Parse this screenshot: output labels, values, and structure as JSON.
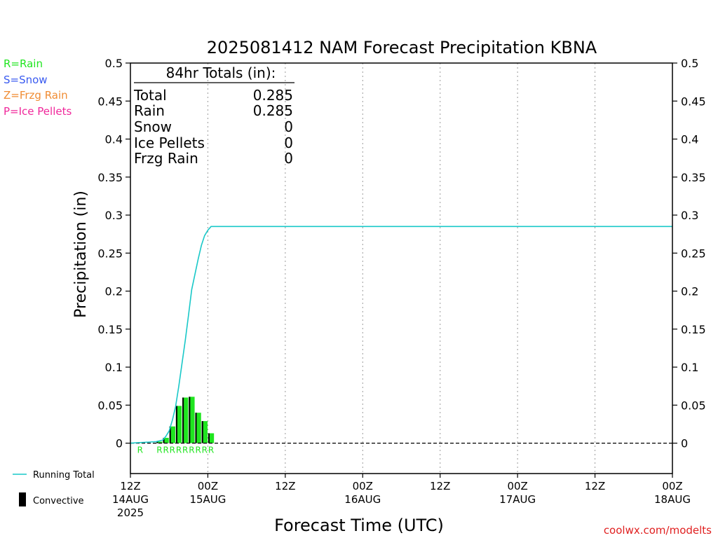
{
  "chart_data": {
    "type": "bar",
    "title": "2025081412 NAM Forecast Precipitation KBNA",
    "xlabel": "Forecast Time (UTC)",
    "ylabel": "Precipitation (in)",
    "ylim": [
      -0.04,
      0.5
    ],
    "xlim_hours": [
      0,
      84
    ],
    "y_ticks": [
      "0.5",
      "0.45",
      "0.4",
      "0.35",
      "0.3",
      "0.25",
      "0.2",
      "0.15",
      "0.1",
      "0.05",
      "0"
    ],
    "x_ticks": [
      {
        "hour": 0,
        "line1": "12Z",
        "line2": "14AUG",
        "line3": "2025"
      },
      {
        "hour": 12,
        "line1": "00Z",
        "line2": "15AUG",
        "line3": ""
      },
      {
        "hour": 24,
        "line1": "12Z",
        "line2": "",
        "line3": ""
      },
      {
        "hour": 36,
        "line1": "00Z",
        "line2": "16AUG",
        "line3": ""
      },
      {
        "hour": 48,
        "line1": "12Z",
        "line2": "",
        "line3": ""
      },
      {
        "hour": 60,
        "line1": "00Z",
        "line2": "17AUG",
        "line3": ""
      },
      {
        "hour": 72,
        "line1": "12Z",
        "line2": "",
        "line3": ""
      },
      {
        "hour": 84,
        "line1": "00Z",
        "line2": "18AUG",
        "line3": ""
      }
    ],
    "grid": "vertical dotted at 12-hour intervals",
    "precip_bars": [
      {
        "hour": 2,
        "value": 0.001,
        "type": "R"
      },
      {
        "hour": 5,
        "value": 0.002,
        "type": "R"
      },
      {
        "hour": 6,
        "value": 0.007,
        "type": "R"
      },
      {
        "hour": 7,
        "value": 0.022,
        "type": "R"
      },
      {
        "hour": 8,
        "value": 0.049,
        "type": "R"
      },
      {
        "hour": 9,
        "value": 0.06,
        "type": "R"
      },
      {
        "hour": 10,
        "value": 0.061,
        "type": "R"
      },
      {
        "hour": 11,
        "value": 0.04,
        "type": "R"
      },
      {
        "hour": 12,
        "value": 0.029,
        "type": "R"
      },
      {
        "hour": 13,
        "value": 0.013,
        "type": "R"
      }
    ],
    "convective_fraction": 0.25,
    "running_total": {
      "hours": [
        0,
        1,
        2,
        3,
        4,
        5,
        5.5,
        6,
        6.5,
        7,
        7.5,
        8,
        8.5,
        9,
        9.5,
        10,
        10.5,
        11,
        11.5,
        12,
        12.5,
        13,
        14,
        84
      ],
      "values": [
        0,
        0.0005,
        0.001,
        0.0015,
        0.002,
        0.004,
        0.009,
        0.016,
        0.03,
        0.048,
        0.075,
        0.105,
        0.135,
        0.168,
        0.202,
        0.222,
        0.242,
        0.26,
        0.273,
        0.28,
        0.285,
        0.285,
        0.285,
        0.285
      ]
    },
    "colors": {
      "rain": "#1fe51f",
      "snow": "#3a5bf0",
      "frzg_rain": "#f08c33",
      "ice_pellets": "#f0289b",
      "running_total": "#19c8c8",
      "convective": "#000000",
      "credit": "#e02020"
    }
  },
  "totals_box": {
    "header": "84hr Totals (in):",
    "rows": [
      {
        "label": "Total",
        "value": "0.285"
      },
      {
        "label": "Rain",
        "value": "0.285"
      },
      {
        "label": "Snow",
        "value": "0"
      },
      {
        "label": "Ice Pellets",
        "value": "0"
      },
      {
        "label": "Frzg Rain",
        "value": "0"
      }
    ]
  },
  "type_legend": {
    "rain": "R=Rain",
    "snow": "S=Snow",
    "frzg_rain": "Z=Frzg Rain",
    "ice_pellets": "P=Ice Pellets"
  },
  "bottom_legend": {
    "running_total": "Running Total",
    "convective": "Convective"
  },
  "credit": "coolwx.com/modelts"
}
